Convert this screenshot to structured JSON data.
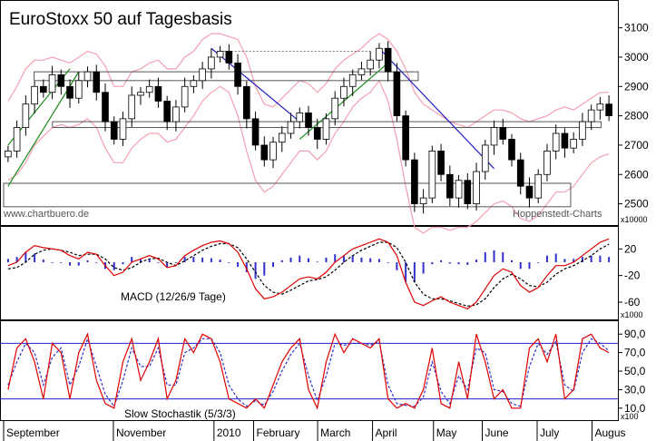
{
  "chart_data": [
    {
      "type": "candlestick",
      "title": "EuroStoxx 50 auf Tagesbasis",
      "source_left": "www.chartbuero.de",
      "source_right": "Hoppenstedt-Charts",
      "scale_tag": "x10000",
      "y_ticks": [
        2500,
        2600,
        2700,
        2800,
        2900,
        3000,
        3100
      ],
      "ylim": [
        2440,
        3170
      ],
      "x_labels": [
        "September",
        "November",
        "2010",
        "February",
        "March",
        "April",
        "May",
        "June",
        "July",
        "Augus"
      ],
      "series": [
        {
          "name": "close",
          "values": [
            2680,
            2760,
            2840,
            2900,
            2880,
            2940,
            2900,
            2860,
            2920,
            2950,
            2880,
            2780,
            2720,
            2790,
            2870,
            2880,
            2900,
            2850,
            2780,
            2830,
            2900,
            2920,
            2960,
            3000,
            3020,
            2980,
            2900,
            2790,
            2700,
            2650,
            2710,
            2740,
            2780,
            2810,
            2760,
            2720,
            2790,
            2860,
            2900,
            2940,
            2960,
            2990,
            3030,
            2950,
            2800,
            2650,
            2500,
            2520,
            2680,
            2600,
            2520,
            2580,
            2500,
            2610,
            2700,
            2760,
            2720,
            2650,
            2560,
            2520,
            2600,
            2680,
            2740,
            2690,
            2720,
            2780,
            2820,
            2840,
            2800
          ]
        }
      ],
      "bollinger_upper": [
        2850,
        2900,
        2960,
        2990,
        2990,
        3000,
        2990,
        2980,
        3000,
        3020,
        3010,
        2970,
        2900,
        2900,
        2950,
        2960,
        2980,
        2990,
        2960,
        2960,
        3000,
        3020,
        3060,
        3080,
        3080,
        3070,
        3060,
        3000,
        2900,
        2840,
        2830,
        2860,
        2890,
        2920,
        2910,
        2880,
        2910,
        2960,
        2990,
        3010,
        3030,
        3060,
        3080,
        3060,
        3020,
        2960,
        2880,
        2840,
        2820,
        2800,
        2780,
        2770,
        2760,
        2780,
        2800,
        2820,
        2820,
        2810,
        2790,
        2780,
        2790,
        2800,
        2820,
        2830,
        2820,
        2840,
        2860,
        2880,
        2880
      ],
      "bollinger_lower": [
        2580,
        2600,
        2640,
        2700,
        2730,
        2760,
        2770,
        2760,
        2770,
        2790,
        2760,
        2690,
        2640,
        2640,
        2690,
        2720,
        2740,
        2740,
        2710,
        2720,
        2760,
        2800,
        2850,
        2880,
        2900,
        2880,
        2800,
        2680,
        2580,
        2540,
        2560,
        2600,
        2640,
        2680,
        2680,
        2650,
        2680,
        2740,
        2780,
        2830,
        2860,
        2880,
        2920,
        2850,
        2720,
        2560,
        2420,
        2400,
        2420,
        2420,
        2410,
        2420,
        2420,
        2440,
        2470,
        2500,
        2510,
        2490,
        2450,
        2440,
        2460,
        2500,
        2540,
        2540,
        2560,
        2600,
        2640,
        2660,
        2670
      ],
      "boxes": [
        {
          "x0": 0.05,
          "x1": 0.68,
          "y0": 2920,
          "y1": 2950
        },
        {
          "x0": 0.08,
          "x1": 0.98,
          "y0": 2760,
          "y1": 2780
        },
        {
          "x0": 0.0,
          "x1": 0.93,
          "y0": 2490,
          "y1": 2570
        }
      ],
      "trendlines_green": [
        {
          "i0": 0,
          "i1": 8,
          "v0": 2560,
          "v1": 2950
        },
        {
          "i0": 0,
          "i1": 7,
          "v0": 2700,
          "v1": 2960
        },
        {
          "i0": 33,
          "i1": 43,
          "v0": 2720,
          "v1": 2980
        }
      ],
      "trendlines_blue": [
        {
          "i0": 23,
          "i1": 33,
          "v0": 3030,
          "v1": 2780
        },
        {
          "i0": 42,
          "i1": 55,
          "v0": 3030,
          "v1": 2620
        }
      ],
      "resistance_dotted": {
        "i0": 24,
        "i1": 41,
        "v": 3020
      }
    },
    {
      "type": "macd",
      "label": "MACD (12/26/9 Tage)",
      "scale_tag": "x1000",
      "y_ticks": [
        20,
        -20,
        -60
      ],
      "ylim": [
        -75,
        45
      ],
      "macd": [
        -5,
        0,
        15,
        25,
        22,
        20,
        18,
        10,
        5,
        15,
        12,
        -5,
        -20,
        -15,
        0,
        5,
        10,
        5,
        -8,
        -5,
        10,
        18,
        25,
        30,
        32,
        28,
        15,
        -10,
        -40,
        -55,
        -52,
        -45,
        -35,
        -25,
        -22,
        -25,
        -15,
        0,
        10,
        20,
        25,
        30,
        35,
        30,
        10,
        -30,
        -60,
        -65,
        -58,
        -52,
        -60,
        -65,
        -70,
        -60,
        -40,
        -20,
        -10,
        -15,
        -35,
        -45,
        -38,
        -20,
        -5,
        -5,
        0,
        10,
        20,
        30,
        35
      ],
      "signal": [
        -10,
        -8,
        0,
        12,
        18,
        20,
        18,
        15,
        10,
        12,
        12,
        5,
        -8,
        -12,
        -8,
        0,
        5,
        6,
        0,
        -5,
        2,
        10,
        18,
        24,
        28,
        28,
        22,
        5,
        -15,
        -35,
        -45,
        -48,
        -42,
        -35,
        -28,
        -26,
        -22,
        -12,
        0,
        10,
        18,
        24,
        30,
        30,
        22,
        0,
        -30,
        -48,
        -55,
        -55,
        -58,
        -62,
        -66,
        -64,
        -55,
        -38,
        -25,
        -18,
        -25,
        -35,
        -37,
        -30,
        -18,
        -10,
        -5,
        2,
        10,
        20,
        27
      ],
      "histogram": [
        5,
        8,
        15,
        13,
        4,
        0,
        0,
        -5,
        -5,
        3,
        0,
        -10,
        -12,
        -3,
        8,
        5,
        5,
        -1,
        -8,
        0,
        8,
        8,
        7,
        6,
        4,
        0,
        -7,
        -15,
        -25,
        -20,
        -7,
        3,
        7,
        10,
        6,
        1,
        7,
        12,
        10,
        10,
        7,
        6,
        5,
        0,
        -12,
        -30,
        -30,
        -17,
        -3,
        3,
        -2,
        -3,
        -4,
        4,
        15,
        18,
        15,
        3,
        -10,
        -10,
        -1,
        10,
        13,
        5,
        5,
        8,
        10,
        10,
        8
      ]
    },
    {
      "type": "stochastic",
      "label": "Slow Stochastik (5/3/3)",
      "scale_tag": "x100",
      "y_ticks": [
        90,
        70,
        50,
        30,
        10
      ],
      "ylim": [
        0,
        100
      ],
      "upper_line": 80,
      "lower_line": 20,
      "k": [
        30,
        75,
        85,
        60,
        20,
        80,
        70,
        20,
        70,
        90,
        40,
        15,
        10,
        60,
        85,
        40,
        60,
        85,
        20,
        40,
        85,
        70,
        90,
        85,
        60,
        20,
        15,
        10,
        20,
        10,
        35,
        60,
        75,
        85,
        30,
        10,
        60,
        90,
        70,
        85,
        80,
        75,
        85,
        20,
        10,
        15,
        10,
        30,
        75,
        15,
        10,
        60,
        20,
        90,
        60,
        20,
        30,
        10,
        10,
        75,
        85,
        60,
        90,
        20,
        30,
        85,
        90,
        75,
        70
      ],
      "d": [
        35,
        60,
        80,
        70,
        35,
        65,
        75,
        35,
        55,
        85,
        55,
        25,
        12,
        40,
        75,
        55,
        55,
        75,
        35,
        35,
        70,
        75,
        85,
        85,
        70,
        35,
        20,
        12,
        18,
        13,
        28,
        50,
        68,
        80,
        45,
        18,
        45,
        80,
        78,
        80,
        80,
        78,
        82,
        35,
        15,
        13,
        12,
        22,
        60,
        28,
        15,
        45,
        30,
        75,
        70,
        30,
        28,
        15,
        12,
        55,
        80,
        68,
        82,
        35,
        28,
        70,
        85,
        80,
        72
      ]
    }
  ],
  "colors": {
    "candle_up": "#ffffff",
    "candle_down": "#000000",
    "bollinger": "#f4a0b0",
    "box_line": "#555555",
    "trend_green": "#1a8a1a",
    "trend_blue": "#2020c0",
    "macd_line": "#e00000",
    "signal_line": "#000000",
    "histogram": "#3030cc",
    "stoch_k": "#e00000",
    "stoch_d": "#3030cc",
    "stoch_band": "#2020cc"
  }
}
